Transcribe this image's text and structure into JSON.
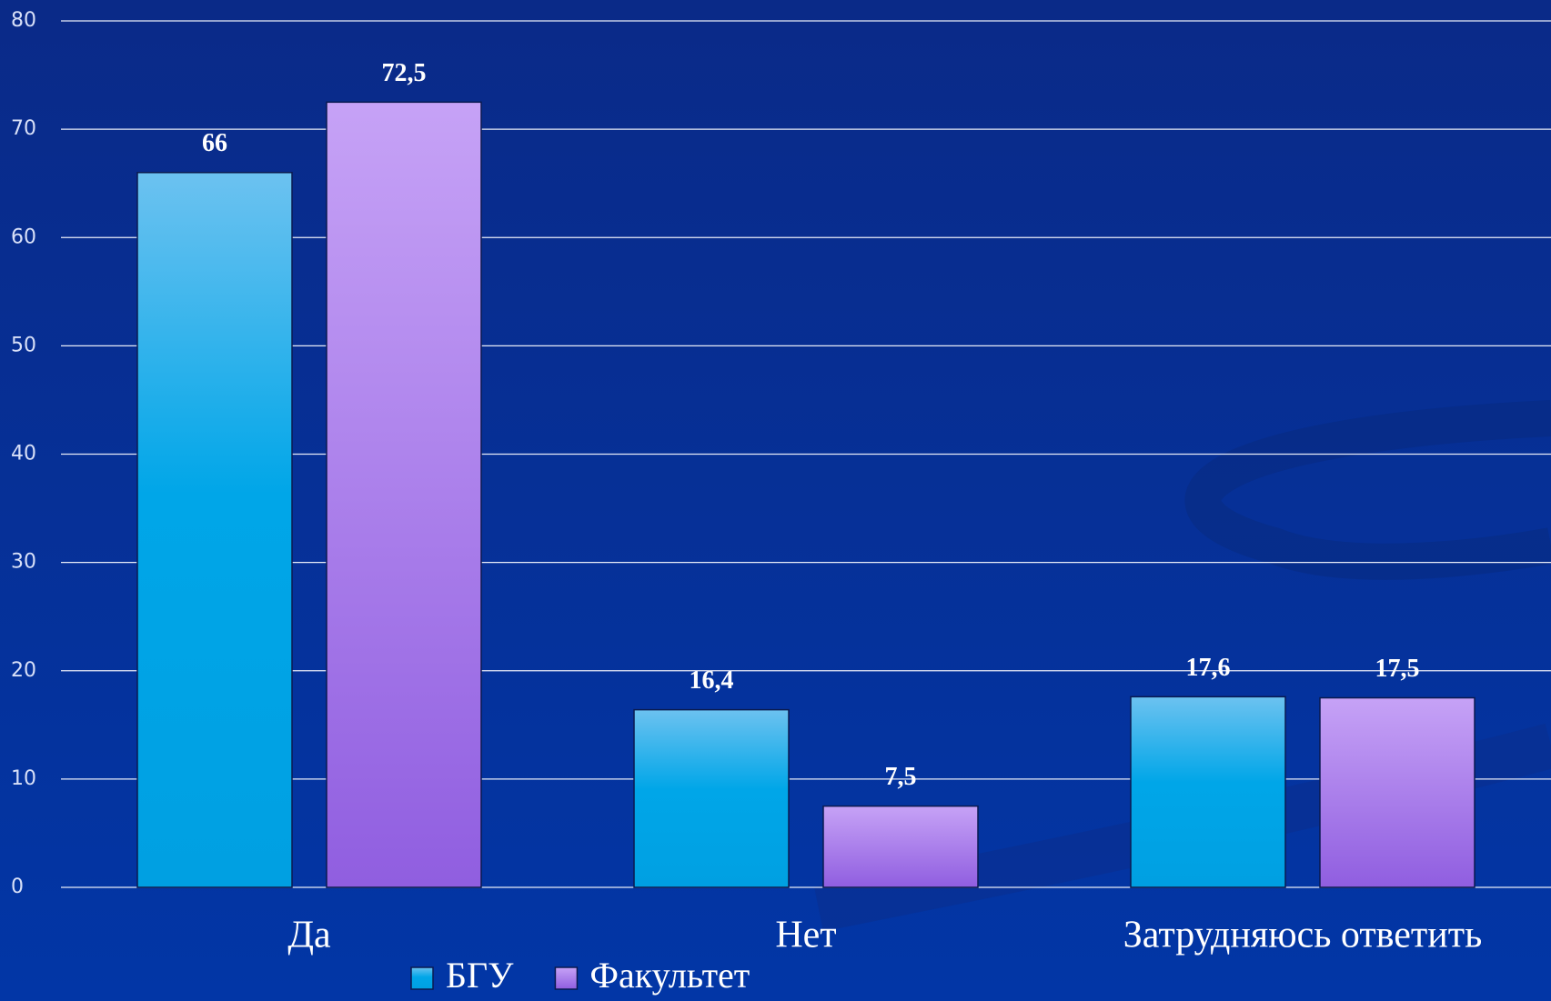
{
  "chart_data": {
    "type": "bar",
    "categories": [
      "Да",
      "Нет",
      "Затрудняюсь ответить"
    ],
    "series": [
      {
        "name": "БГУ",
        "color": "#00a6e8",
        "values": [
          66,
          16.4,
          17.6
        ],
        "value_labels": [
          "66",
          "16,4",
          "17,6"
        ]
      },
      {
        "name": "Факультет",
        "color": "#9a68e4",
        "values": [
          72.5,
          7.5,
          17.5
        ],
        "value_labels": [
          "72,5",
          "7,5",
          "17,5"
        ]
      }
    ],
    "ylim": [
      0,
      80
    ],
    "yticks": [
      0,
      10,
      20,
      30,
      40,
      50,
      60,
      70,
      80
    ],
    "grid": true,
    "legend": "bottom"
  }
}
